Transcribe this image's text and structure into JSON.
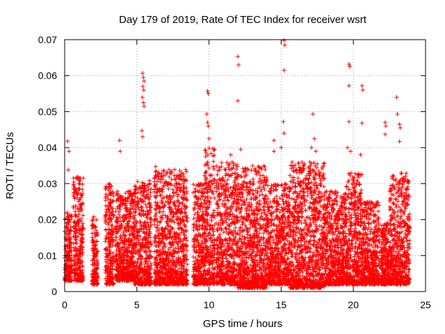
{
  "chart_data": {
    "type": "scatter",
    "title": "Day 179 of 2019, Rate Of TEC Index for receiver wsrt",
    "xlabel": "GPS time / hours",
    "ylabel": "ROTI / TECUs",
    "xlim": [
      0,
      25
    ],
    "ylim": [
      0,
      0.07
    ],
    "x_ticks": [
      0,
      5,
      10,
      15,
      20,
      25
    ],
    "x_tick_labels": [
      "0",
      "5",
      "10",
      "15",
      "20",
      "25"
    ],
    "y_ticks": [
      0,
      0.01,
      0.02,
      0.03,
      0.04,
      0.05,
      0.06,
      0.07
    ],
    "y_tick_labels": [
      "0",
      "0.01",
      "0.02",
      "0.03",
      "0.04",
      "0.05",
      "0.06",
      "0.07"
    ],
    "grid": true,
    "marker": "+",
    "series": [
      {
        "name": "ROTI",
        "color": "#ff0000",
        "note": "dense scatter of ROTI values, mostly 0.002–0.025 TECU/s; listed outliers read from the figure",
        "clusters": [
          {
            "x_range": [
              0.0,
              0.5
            ],
            "y_range": [
              0.003,
              0.022
            ]
          },
          {
            "x_range": [
              0.6,
              1.3
            ],
            "y_range": [
              0.003,
              0.032
            ]
          },
          {
            "x_range": [
              1.9,
              2.3
            ],
            "y_range": [
              0.002,
              0.021
            ]
          },
          {
            "x_range": [
              2.8,
              3.4
            ],
            "y_range": [
              0.002,
              0.03
            ]
          },
          {
            "x_range": [
              3.5,
              4.8
            ],
            "y_range": [
              0.003,
              0.028
            ]
          },
          {
            "x_range": [
              4.8,
              6.0
            ],
            "y_range": [
              0.002,
              0.031
            ]
          },
          {
            "x_range": [
              6.2,
              8.5
            ],
            "y_range": [
              0.002,
              0.034
            ]
          },
          {
            "x_range": [
              8.9,
              9.7
            ],
            "y_range": [
              0.002,
              0.03
            ]
          },
          {
            "x_range": [
              9.7,
              10.4
            ],
            "y_range": [
              0.002,
              0.04
            ]
          },
          {
            "x_range": [
              10.5,
              12.0
            ],
            "y_range": [
              0.002,
              0.036
            ]
          },
          {
            "x_range": [
              12.0,
              14.0
            ],
            "y_range": [
              0.001,
              0.035
            ]
          },
          {
            "x_range": [
              14.0,
              15.6
            ],
            "y_range": [
              0.002,
              0.03
            ]
          },
          {
            "x_range": [
              15.6,
              18.0
            ],
            "y_range": [
              0.001,
              0.036
            ]
          },
          {
            "x_range": [
              18.0,
              19.5
            ],
            "y_range": [
              0.002,
              0.028
            ]
          },
          {
            "x_range": [
              19.5,
              20.6
            ],
            "y_range": [
              0.002,
              0.033
            ]
          },
          {
            "x_range": [
              20.6,
              21.8
            ],
            "y_range": [
              0.002,
              0.025
            ]
          },
          {
            "x_range": [
              21.9,
              22.5
            ],
            "y_range": [
              0.002,
              0.019
            ]
          },
          {
            "x_range": [
              22.5,
              23.9
            ],
            "y_range": [
              0.002,
              0.033
            ]
          }
        ],
        "points": [
          [
            0.2,
            0.0418
          ],
          [
            0.3,
            0.039
          ],
          [
            0.25,
            0.0338
          ],
          [
            3.8,
            0.042
          ],
          [
            3.85,
            0.039
          ],
          [
            5.4,
            0.0607
          ],
          [
            5.45,
            0.0595
          ],
          [
            5.5,
            0.0585
          ],
          [
            5.42,
            0.057
          ],
          [
            5.48,
            0.056
          ],
          [
            5.38,
            0.054
          ],
          [
            5.45,
            0.0525
          ],
          [
            5.5,
            0.0515
          ],
          [
            5.35,
            0.0447
          ],
          [
            5.4,
            0.043
          ],
          [
            6.3,
            0.0347
          ],
          [
            6.35,
            0.0335
          ],
          [
            9.9,
            0.0557
          ],
          [
            9.95,
            0.055
          ],
          [
            9.85,
            0.0493
          ],
          [
            9.9,
            0.047
          ],
          [
            9.95,
            0.046
          ],
          [
            10.0,
            0.0425
          ],
          [
            9.8,
            0.0385
          ],
          [
            11.5,
            0.038
          ],
          [
            11.6,
            0.036
          ],
          [
            12.0,
            0.0653
          ],
          [
            12.05,
            0.063
          ],
          [
            12.0,
            0.053
          ],
          [
            12.2,
            0.0395
          ],
          [
            14.5,
            0.042
          ],
          [
            14.5,
            0.039
          ],
          [
            15.2,
            0.0698
          ],
          [
            15.25,
            0.0685
          ],
          [
            15.2,
            0.0615
          ],
          [
            15.15,
            0.0472
          ],
          [
            15.2,
            0.044
          ],
          [
            15.0,
            0.04
          ],
          [
            17.2,
            0.0493
          ],
          [
            17.3,
            0.0425
          ],
          [
            17.1,
            0.04
          ],
          [
            17.4,
            0.039
          ],
          [
            19.7,
            0.0632
          ],
          [
            19.75,
            0.0625
          ],
          [
            19.7,
            0.0572
          ],
          [
            19.7,
            0.0472
          ],
          [
            19.6,
            0.04
          ],
          [
            19.8,
            0.039
          ],
          [
            20.6,
            0.0572
          ],
          [
            20.65,
            0.056
          ],
          [
            20.6,
            0.0468
          ],
          [
            20.5,
            0.038
          ],
          [
            22.2,
            0.047
          ],
          [
            22.25,
            0.046
          ],
          [
            22.2,
            0.0437
          ],
          [
            23.0,
            0.054
          ],
          [
            23.05,
            0.0493
          ],
          [
            23.2,
            0.0465
          ],
          [
            23.25,
            0.0455
          ],
          [
            23.2,
            0.0417
          ]
        ]
      }
    ]
  }
}
